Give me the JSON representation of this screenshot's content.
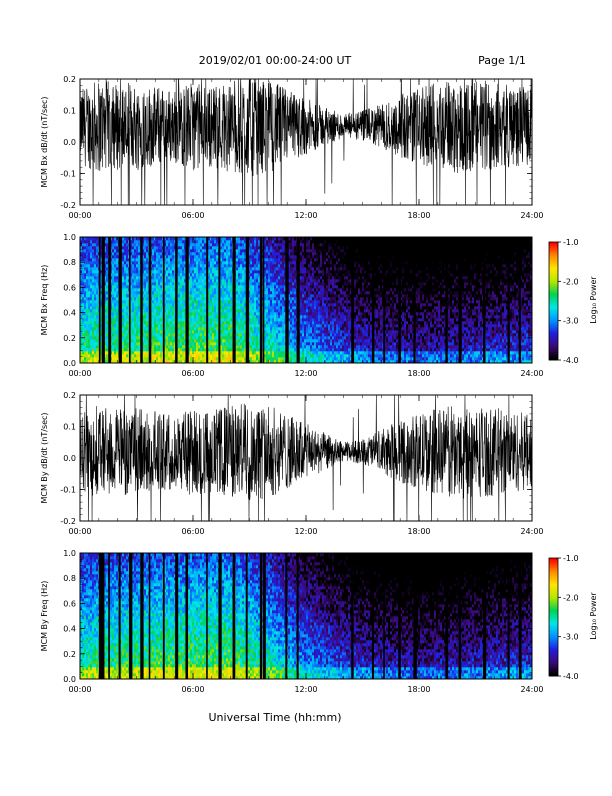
{
  "header": {
    "title": "2019/02/01   00:00-24:00 UT",
    "page": "Page 1/1"
  },
  "footer": {
    "xlabel": "Universal Time (hh:mm)"
  },
  "colors": {
    "waveform": "#000000",
    "colorbar": [
      "#000000",
      "#3c0a78",
      "#2020e0",
      "#0096ff",
      "#00e6e6",
      "#00d250",
      "#b4e600",
      "#ffe600",
      "#ff8c00",
      "#ff0000"
    ]
  },
  "chart_data": [
    {
      "type": "line",
      "ylabel": "MCM Bx dB/dt (nT/sec)",
      "ylim": [
        -0.2,
        0.2
      ],
      "yticks": [
        "-0.2",
        "-0.1",
        "0.0",
        "0.1",
        "0.2"
      ],
      "xticks": [
        "00:00",
        "06:00",
        "12:00",
        "18:00",
        "24:00"
      ],
      "xlim_hours": [
        0,
        24
      ],
      "note": "dense noisy waveform centred near 0.05 with quiet period around 13-16 UT",
      "envelope_hours": [
        0,
        1,
        2,
        3,
        4,
        5,
        6,
        7,
        8,
        9,
        10,
        11,
        12,
        13,
        14,
        15,
        16,
        17,
        18,
        19,
        20,
        21,
        22,
        23,
        24
      ],
      "envelope_halfwidth": [
        0.12,
        0.15,
        0.14,
        0.14,
        0.13,
        0.12,
        0.14,
        0.13,
        0.15,
        0.16,
        0.15,
        0.12,
        0.09,
        0.06,
        0.04,
        0.05,
        0.07,
        0.1,
        0.12,
        0.14,
        0.15,
        0.15,
        0.14,
        0.13,
        0.12
      ],
      "center": 0.05
    },
    {
      "type": "heatmap",
      "ylabel": "MCM Bx Freq (Hz)",
      "ylim": [
        0.0,
        1.0
      ],
      "yticks": [
        "0.0",
        "0.2",
        "0.4",
        "0.6",
        "0.8",
        "1.0"
      ],
      "xticks": [
        "00:00",
        "06:00",
        "12:00",
        "18:00",
        "24:00"
      ],
      "colorbar_label": "Log₁₀ Power",
      "colorbar_ticks": [
        "-1.0",
        "-2.0",
        "-3.0",
        "-4.0"
      ],
      "clim": [
        -4.0,
        -1.0
      ]
    },
    {
      "type": "line",
      "ylabel": "MCM By dB/dt (nT/sec)",
      "ylim": [
        -0.2,
        0.2
      ],
      "yticks": [
        "-0.2",
        "-0.1",
        "0.0",
        "0.1",
        "0.2"
      ],
      "xticks": [
        "00:00",
        "06:00",
        "12:00",
        "18:00",
        "24:00"
      ],
      "xlim_hours": [
        0,
        24
      ],
      "envelope_hours": [
        0,
        1,
        2,
        3,
        4,
        5,
        6,
        7,
        8,
        9,
        10,
        11,
        12,
        13,
        14,
        15,
        16,
        17,
        18,
        19,
        20,
        21,
        22,
        23,
        24
      ],
      "envelope_halfwidth": [
        0.12,
        0.15,
        0.14,
        0.14,
        0.13,
        0.12,
        0.14,
        0.13,
        0.15,
        0.16,
        0.15,
        0.12,
        0.09,
        0.06,
        0.03,
        0.04,
        0.07,
        0.1,
        0.12,
        0.14,
        0.15,
        0.15,
        0.14,
        0.13,
        0.12
      ],
      "center": 0.02
    },
    {
      "type": "heatmap",
      "ylabel": "MCM By Freq (Hz)",
      "ylim": [
        0.0,
        1.0
      ],
      "yticks": [
        "0.0",
        "0.2",
        "0.4",
        "0.6",
        "0.8",
        "1.0"
      ],
      "xticks": [
        "00:00",
        "06:00",
        "12:00",
        "18:00",
        "24:00"
      ],
      "colorbar_label": "Log₁₀ Power",
      "colorbar_ticks": [
        "-1.0",
        "-2.0",
        "-3.0",
        "-4.0"
      ],
      "clim": [
        -4.0,
        -1.0
      ]
    }
  ]
}
